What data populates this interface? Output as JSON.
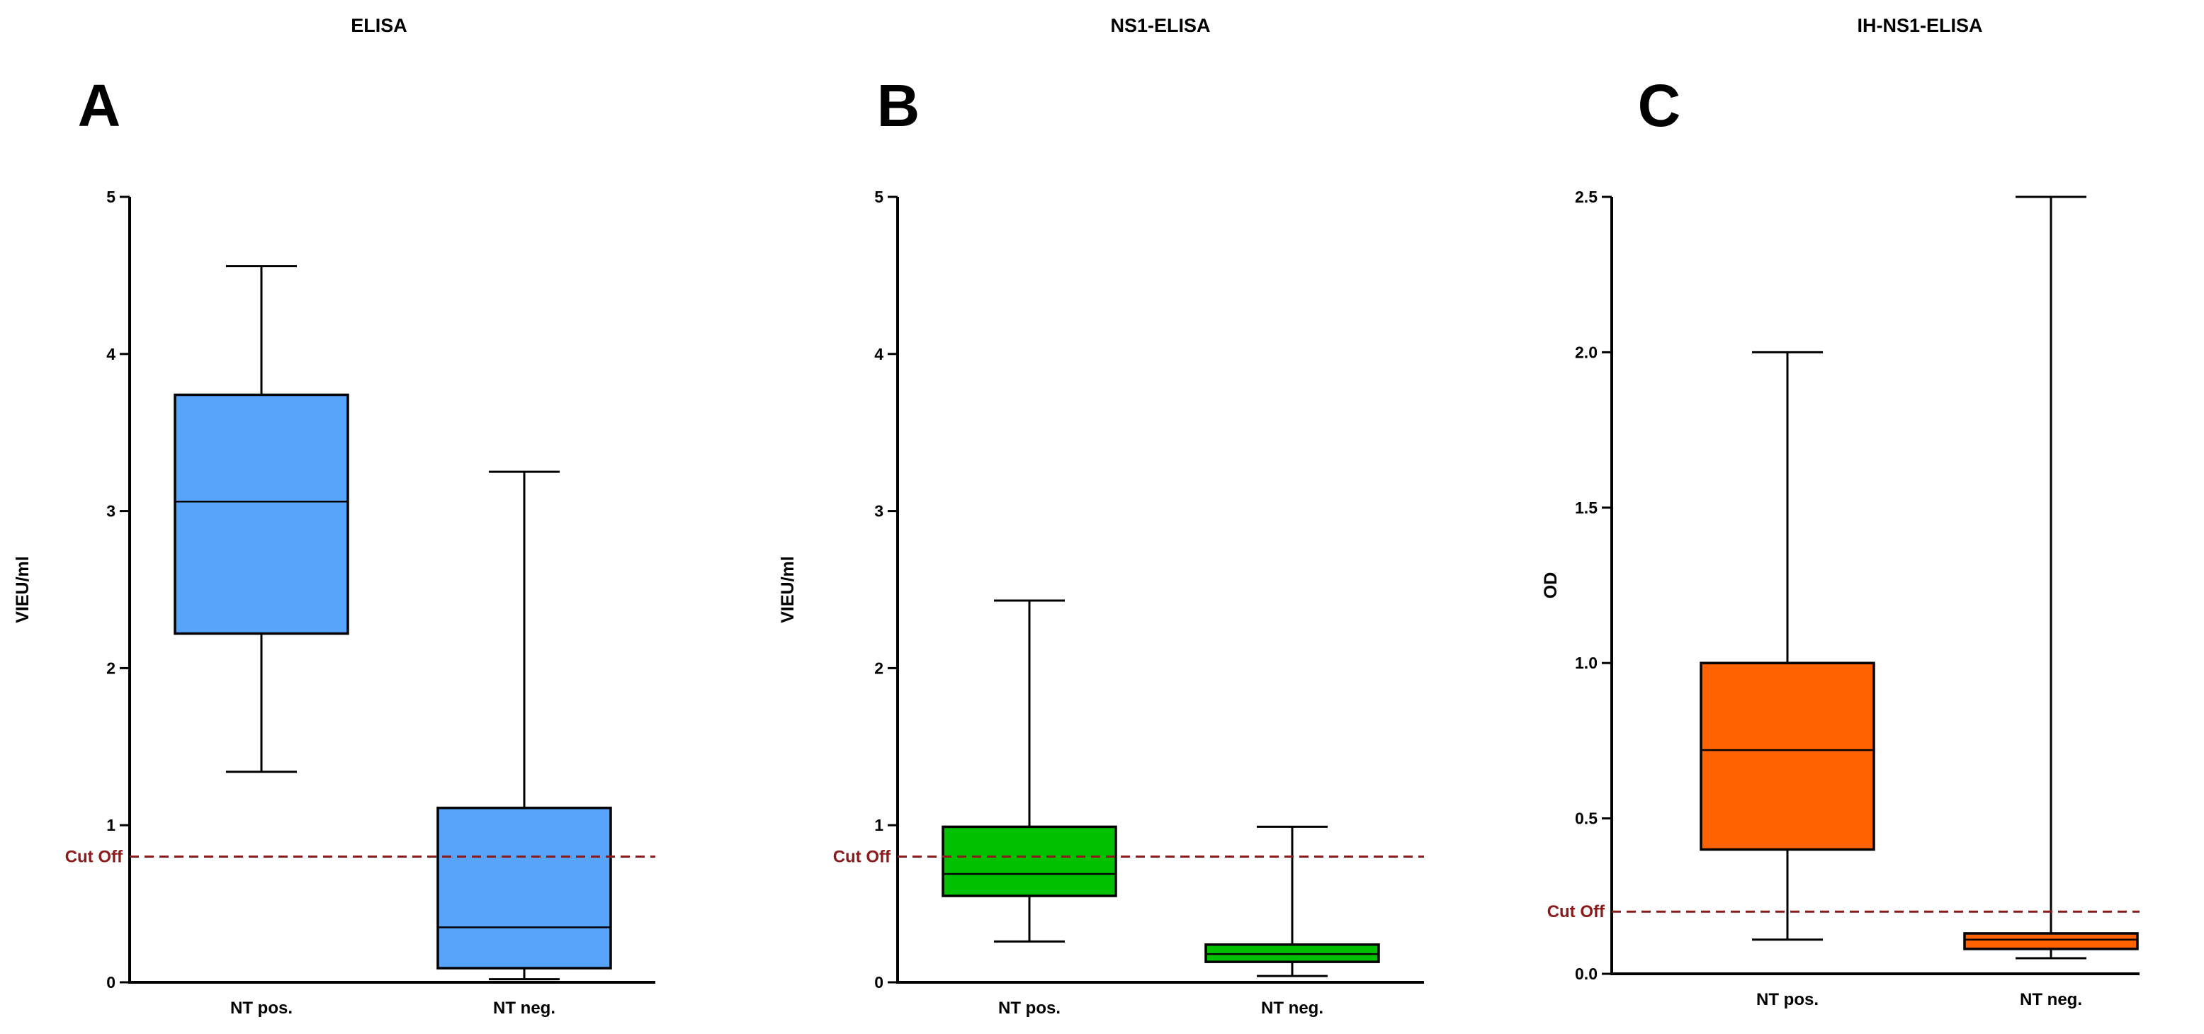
{
  "chart_data": [
    {
      "type": "box",
      "title": "ELISA",
      "panel_label": "A",
      "ylabel": "VIEU/ml",
      "ylim": [
        0,
        5
      ],
      "yticks": [
        "0",
        "1",
        "2",
        "3",
        "4",
        "5"
      ],
      "ytick_values": [
        0,
        1,
        2,
        3,
        4,
        5
      ],
      "categories": [
        "NT pos.",
        "NT neg."
      ],
      "boxes": [
        {
          "name": "NT pos.",
          "min": 1.34,
          "q1": 2.22,
          "median": 3.06,
          "q3": 3.74,
          "max": 4.56
        },
        {
          "name": "NT neg.",
          "min": 0.02,
          "q1": 0.09,
          "median": 0.35,
          "q3": 1.11,
          "max": 3.25
        }
      ],
      "box_color": "#58a4fa",
      "cutoff": {
        "label": "Cut Off",
        "value": 0.8,
        "color": "#8b1a1a"
      },
      "baseline": false
    },
    {
      "type": "box",
      "title": "NS1-ELISA",
      "panel_label": "B",
      "ylabel": "VIEU/ml",
      "ylim": [
        0,
        5
      ],
      "yticks": [
        "0",
        "1",
        "2",
        "3",
        "4",
        "5"
      ],
      "ytick_values": [
        0,
        1,
        2,
        3,
        4,
        5
      ],
      "categories": [
        "NT pos.",
        "NT neg."
      ],
      "boxes": [
        {
          "name": "NT pos.",
          "min": 0.26,
          "q1": 0.55,
          "median": 0.69,
          "q3": 0.99,
          "max": 2.43
        },
        {
          "name": "NT neg.",
          "min": 0.04,
          "q1": 0.13,
          "median": 0.18,
          "q3": 0.24,
          "max": 0.99
        }
      ],
      "box_color": "#00c000",
      "cutoff": {
        "label": "Cut Off",
        "value": 0.8,
        "color": "#8b1a1a"
      },
      "baseline": false
    },
    {
      "type": "box",
      "title": "IH-NS1-ELISA",
      "panel_label": "C",
      "ylabel": "OD",
      "ylim": [
        0,
        2.5
      ],
      "yticks": [
        "0.0",
        "0.5",
        "1.0",
        "1.5",
        "2.0",
        "2.5"
      ],
      "ytick_values": [
        0,
        0.5,
        1,
        1.5,
        2,
        2.5
      ],
      "categories": [
        "NT pos.",
        "NT neg."
      ],
      "boxes": [
        {
          "name": "NT pos.",
          "min": 0.11,
          "q1": 0.4,
          "median": 0.72,
          "q3": 1.0,
          "max": 2.0
        },
        {
          "name": "NT neg.",
          "min": 0.05,
          "q1": 0.08,
          "median": 0.11,
          "q3": 0.13,
          "max": 2.5
        }
      ],
      "box_color": "#ff6200",
      "cutoff": {
        "label": "Cut Off",
        "value": 0.2,
        "color": "#8b1a1a"
      },
      "baseline": true
    }
  ]
}
